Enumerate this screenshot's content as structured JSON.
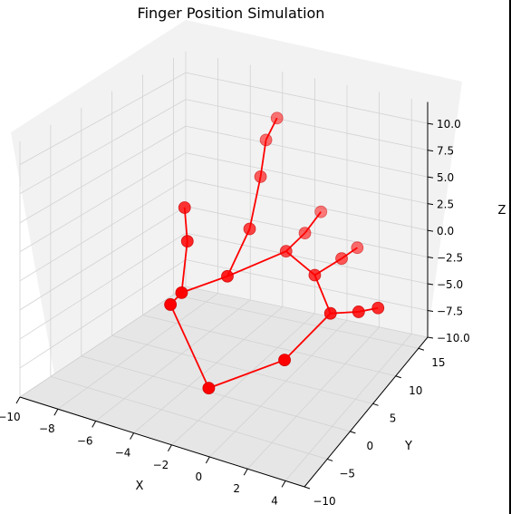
{
  "chart_data": {
    "type": "scatter",
    "title": "Finger Position Simulation",
    "xlabel": "X",
    "ylabel": "Y",
    "zlabel": "Z",
    "xlim": [
      -10,
      5
    ],
    "ylim": [
      -10,
      17
    ],
    "zlim": [
      -10,
      12
    ],
    "xticks": [
      "−10",
      "−8",
      "−6",
      "−4",
      "−2",
      "0",
      "2",
      "4"
    ],
    "yticks": [
      "−10",
      "−5",
      "0",
      "5",
      "10",
      "15"
    ],
    "zticks": [
      "−10.0",
      "−7.5",
      "−5.0",
      "−2.5",
      "0.0",
      "2.5",
      "5.0",
      "7.5",
      "10.0"
    ],
    "grid": true,
    "series": [
      {
        "color": "#ff0000",
        "points": [
          {
            "x": -4.0,
            "y": 7.0,
            "z": -3.0
          },
          {
            "x": -3.5,
            "y": 9.5,
            "z": 0.5
          },
          {
            "x": -3.5,
            "y": 11.5,
            "z": 4.5
          },
          {
            "x": -3.5,
            "y": 12.5,
            "z": 7.5
          },
          {
            "x": -3.0,
            "y": 13.0,
            "z": 9.5
          },
          {
            "x": -1.5,
            "y": 10.0,
            "z": -1.0
          },
          {
            "x": -1.0,
            "y": 12.0,
            "z": 0.0
          },
          {
            "x": -0.5,
            "y": 13.5,
            "z": 1.5
          },
          {
            "x": 0.5,
            "y": 9.0,
            "z": -2.0
          },
          {
            "x": 1.5,
            "y": 11.0,
            "z": -1.0
          },
          {
            "x": 2.0,
            "y": 12.5,
            "z": -0.5
          },
          {
            "x": 2.0,
            "y": 7.0,
            "z": -4.0
          },
          {
            "x": 3.5,
            "y": 7.5,
            "z": -3.5
          },
          {
            "x": 4.5,
            "y": 8.0,
            "z": -3.0
          },
          {
            "x": 0.5,
            "y": 3.0,
            "z": -7.0
          },
          {
            "x": -2.0,
            "y": -3.0,
            "z": -8.0
          },
          {
            "x": -5.5,
            "y": 1.5,
            "z": -4.0
          },
          {
            "x": -6.0,
            "y": 5.0,
            "z": -4.5
          },
          {
            "x": -6.5,
            "y": 7.5,
            "z": -1.0
          },
          {
            "x": -7.0,
            "y": 8.5,
            "z": 1.5
          }
        ],
        "edges": [
          [
            0,
            1
          ],
          [
            1,
            2
          ],
          [
            2,
            3
          ],
          [
            3,
            4
          ],
          [
            0,
            5
          ],
          [
            5,
            6
          ],
          [
            6,
            7
          ],
          [
            5,
            8
          ],
          [
            8,
            9
          ],
          [
            9,
            10
          ],
          [
            8,
            11
          ],
          [
            11,
            12
          ],
          [
            12,
            13
          ],
          [
            11,
            14
          ],
          [
            14,
            15
          ],
          [
            15,
            16
          ],
          [
            16,
            17
          ],
          [
            17,
            0
          ],
          [
            17,
            18
          ],
          [
            18,
            19
          ]
        ]
      }
    ]
  }
}
